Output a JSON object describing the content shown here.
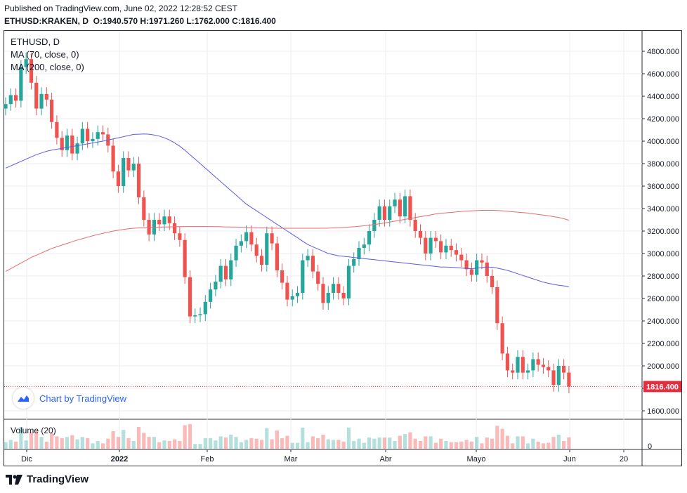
{
  "header": {
    "published": "Published on TradingView.com, June 02, 2022 12:28:52 CEST",
    "symbol": "ETHUSD:KRAKEN, D",
    "ohlc": "O:1940.570 H:1971.260 L:1762.000 C:1816.400"
  },
  "legend": {
    "title": "ETHUSD, D",
    "ma70": "MA (70, close, 0)",
    "ma200": "MA (200, close, 0)",
    "volume": "Volume (20)"
  },
  "badge": {
    "text": "Chart by TradingView"
  },
  "footer": {
    "brand": "TradingView"
  },
  "colors": {
    "up": "#26a69a",
    "down": "#ef5350",
    "ma70": "#5b5be8",
    "ma200": "#e86b6b",
    "last": "#e0303f"
  },
  "chart_data": {
    "type": "candlestick",
    "symbol": "ETHUSD:KRAKEN",
    "interval": "D",
    "y_ticks": [
      1600,
      1800,
      2000,
      2200,
      2400,
      2600,
      2800,
      3000,
      3200,
      3400,
      3600,
      3800,
      4000,
      4200,
      4400,
      4600,
      4800
    ],
    "y_tick_labels": [
      "1600.000",
      "1800.000",
      "2000.000",
      "2200.000",
      "2400.000",
      "2600.000",
      "2800.000",
      "3000.000",
      "3200.000",
      "3400.000",
      "3600.000",
      "3800.000",
      "4000.000",
      "4200.000",
      "4400.000",
      "4600.000",
      "4800.000"
    ],
    "x_labels": [
      "Dic",
      "2022",
      "Feb",
      "Mar",
      "Abr",
      "Mayo",
      "Jun",
      "20"
    ],
    "last_price": 1816.4,
    "last_price_label": "1816.400",
    "volume_axis_label": "0",
    "grid": true,
    "closes": [
      4330,
      4410,
      4360,
      4660,
      4730,
      4520,
      4290,
      4420,
      4370,
      4170,
      4030,
      3920,
      4050,
      3890,
      3980,
      4110,
      4000,
      4020,
      4080,
      4060,
      3960,
      3730,
      3600,
      3850,
      3740,
      3800,
      3500,
      3300,
      3170,
      3300,
      3260,
      3330,
      3270,
      3180,
      3120,
      2790,
      2440,
      2450,
      2460,
      2570,
      2680,
      2750,
      2890,
      2770,
      2940,
      3070,
      3110,
      3190,
      3080,
      2980,
      2900,
      3180,
      3090,
      2850,
      2740,
      2590,
      2620,
      2650,
      2940,
      2980,
      2840,
      2730,
      2560,
      2650,
      2730,
      2650,
      2600,
      2890,
      2950,
      3050,
      3080,
      3200,
      3300,
      3420,
      3300,
      3420,
      3480,
      3330,
      3510,
      3300,
      3200,
      3140,
      3000,
      3140,
      3110,
      3010,
      3070,
      3030,
      2990,
      2940,
      2860,
      2810,
      2940,
      2920,
      2800,
      2700,
      2380,
      2110,
      1960,
      1940,
      2080,
      1940,
      1960,
      2060,
      2010,
      1990,
      1960,
      1830,
      2000,
      1940,
      1816
    ],
    "opens": [
      4290,
      4330,
      4410,
      4360,
      4660,
      4730,
      4520,
      4290,
      4420,
      4370,
      4170,
      4030,
      3920,
      4050,
      3890,
      3980,
      4110,
      4000,
      4020,
      4080,
      4060,
      3960,
      3730,
      3600,
      3850,
      3740,
      3800,
      3500,
      3300,
      3170,
      3300,
      3260,
      3330,
      3270,
      3180,
      3120,
      2790,
      2440,
      2450,
      2460,
      2570,
      2680,
      2750,
      2890,
      2770,
      2940,
      3070,
      3110,
      3190,
      3080,
      2980,
      2900,
      3180,
      3090,
      2850,
      2740,
      2590,
      2620,
      2650,
      2940,
      2980,
      2840,
      2730,
      2560,
      2650,
      2730,
      2650,
      2600,
      2890,
      2950,
      3050,
      3080,
      3200,
      3300,
      3420,
      3300,
      3420,
      3480,
      3330,
      3510,
      3300,
      3200,
      3140,
      3000,
      3140,
      3110,
      3010,
      3070,
      3030,
      2990,
      2940,
      2860,
      2810,
      2940,
      2920,
      2800,
      2700,
      2380,
      2110,
      1960,
      1940,
      2080,
      1940,
      1960,
      2060,
      2010,
      1990,
      1960,
      1830,
      2000,
      1940
    ],
    "ma70": [
      3760,
      3780,
      3800,
      3820,
      3840,
      3860,
      3880,
      3895,
      3910,
      3920,
      3928,
      3935,
      3945,
      3952,
      3960,
      3968,
      3976,
      3984,
      3992,
      4000,
      4010,
      4020,
      4030,
      4040,
      4050,
      4060,
      4062,
      4064,
      4062,
      4055,
      4045,
      4030,
      4010,
      3985,
      3955,
      3920,
      3880,
      3840,
      3800,
      3760,
      3720,
      3680,
      3640,
      3600,
      3560,
      3520,
      3480,
      3440,
      3410,
      3380,
      3350,
      3320,
      3290,
      3260,
      3230,
      3200,
      3170,
      3140,
      3110,
      3080,
      3060,
      3040,
      3020,
      3000,
      2990,
      2980,
      2975,
      2970,
      2965,
      2960,
      2955,
      2950,
      2945,
      2940,
      2935,
      2930,
      2925,
      2920,
      2915,
      2910,
      2905,
      2900,
      2895,
      2890,
      2885,
      2880,
      2880,
      2878,
      2875,
      2870,
      2868,
      2865,
      2870,
      2875,
      2880,
      2878,
      2870,
      2860,
      2850,
      2835,
      2820,
      2805,
      2790,
      2775,
      2760,
      2745,
      2735,
      2725,
      2718,
      2712,
      2706
    ],
    "ma200": [
      2840,
      2865,
      2890,
      2915,
      2940,
      2965,
      2985,
      3005,
      3025,
      3045,
      3060,
      3075,
      3090,
      3105,
      3120,
      3132,
      3145,
      3158,
      3170,
      3180,
      3190,
      3200,
      3207,
      3214,
      3220,
      3225,
      3228,
      3230,
      3232,
      3234,
      3235,
      3236,
      3237,
      3238,
      3239,
      3240,
      3240,
      3240,
      3240,
      3240,
      3240,
      3239,
      3238,
      3237,
      3236,
      3235,
      3234,
      3232,
      3230,
      3229,
      3228,
      3227,
      3226,
      3225,
      3225,
      3225,
      3225,
      3225,
      3225,
      3225,
      3225,
      3225,
      3225,
      3226,
      3228,
      3230,
      3232,
      3235,
      3238,
      3242,
      3247,
      3252,
      3258,
      3265,
      3272,
      3280,
      3288,
      3296,
      3304,
      3312,
      3320,
      3328,
      3336,
      3344,
      3352,
      3358,
      3362,
      3366,
      3370,
      3374,
      3378,
      3380,
      3382,
      3384,
      3384,
      3384,
      3383,
      3380,
      3376,
      3372,
      3368,
      3364,
      3360,
      3354,
      3348,
      3342,
      3336,
      3328,
      3320,
      3310,
      3296
    ]
  }
}
